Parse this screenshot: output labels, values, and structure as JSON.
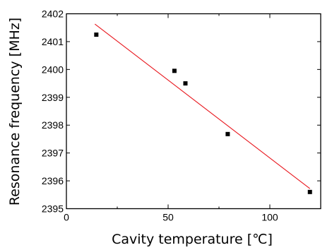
{
  "chart_data": {
    "type": "scatter",
    "title": "",
    "xlabel": "Cavity temperature [℃]",
    "ylabel": "Resonance frequency [MHz]",
    "xlim": [
      0,
      125
    ],
    "ylim": [
      2395,
      2402
    ],
    "xticks": [
      0,
      50,
      100
    ],
    "yticks": [
      2395,
      2396,
      2397,
      2398,
      2399,
      2400,
      2401,
      2402
    ],
    "x_minor_ticks": [
      25,
      75,
      125
    ],
    "grid": false,
    "legend": "none",
    "series": [
      {
        "marker": "square",
        "color": "#000000",
        "points": [
          {
            "x": 14.7,
            "y": 2401.25
          },
          {
            "x": 53.1,
            "y": 2399.95
          },
          {
            "x": 58.5,
            "y": 2399.5
          },
          {
            "x": 79.3,
            "y": 2397.68
          },
          {
            "x": 119.7,
            "y": 2395.6
          }
        ]
      }
    ],
    "fit_line": {
      "color": "#e8161d",
      "points": [
        {
          "x": 14.0,
          "y": 2401.63
        },
        {
          "x": 119.7,
          "y": 2395.72
        }
      ]
    }
  }
}
